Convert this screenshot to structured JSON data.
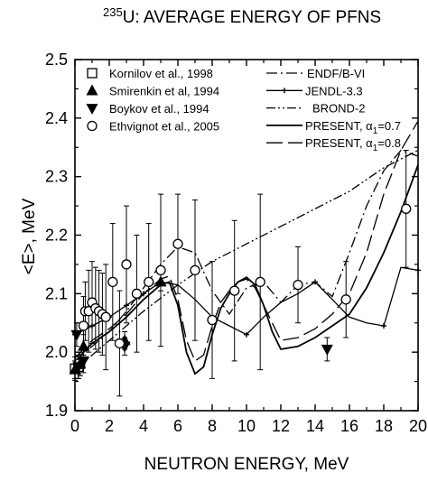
{
  "chart_data": {
    "type": "scatter",
    "title_sup": "235",
    "title_main": "U: AVERAGE ENERGY OF PFNS",
    "xlabel": "NEUTRON ENERGY, MeV",
    "ylabel": "<E>, MeV",
    "xlim": [
      0,
      20
    ],
    "ylim": [
      1.9,
      2.5
    ],
    "xticks": [
      "0",
      "2",
      "4",
      "6",
      "8",
      "10",
      "12",
      "14",
      "16",
      "18",
      "20"
    ],
    "yticks": [
      "1.9",
      "2.0",
      "2.1",
      "2.2",
      "2.3",
      "2.4",
      "2.5"
    ],
    "grid": false,
    "legend_left": [
      {
        "label": "Kornilov et al., 1998",
        "marker": "square-open"
      },
      {
        "label": "Smirenkin et al, 1994",
        "marker": "triangle-up-filled"
      },
      {
        "label": "Boykov et al., 1994",
        "marker": "triangle-down-filled"
      },
      {
        "label": "Ethvignot et al.,  2005",
        "marker": "circle-open"
      }
    ],
    "legend_right": [
      {
        "label": "ENDF/B-VI",
        "style": "dashdot"
      },
      {
        "label": "JENDL-3.3",
        "style": "solid-plus"
      },
      {
        "label": "BROND-2",
        "style": "dashdotdot"
      },
      {
        "label_main": "PRESENT, α",
        "label_sub": "1",
        "label_tail": "=0.7",
        "style": "solid"
      },
      {
        "label_main": "PRESENT, α",
        "label_sub": "1",
        "label_tail": "=0.8",
        "style": "longdash"
      }
    ],
    "series": [
      {
        "name": "Kornilov et al., 1998",
        "marker": "square-open",
        "points": [
          [
            0.0,
            1.972,
            0.02
          ],
          [
            0.2,
            1.975,
            0.02
          ],
          [
            0.3,
            1.98,
            0.02
          ]
        ]
      },
      {
        "name": "Smirenkin et al, 1994",
        "marker": "triangle-up-filled",
        "points": [
          [
            0.0,
            1.97,
            0.015
          ],
          [
            0.3,
            1.98,
            0.02
          ],
          [
            0.5,
            2.01,
            0.02
          ],
          [
            2.9,
            2.02,
            0.015
          ],
          [
            5.0,
            2.12,
            0.015
          ]
        ]
      },
      {
        "name": "Boykov et al., 1994",
        "marker": "triangle-down-filled",
        "points": [
          [
            0.1,
            2.03,
            0.02
          ],
          [
            0.2,
            1.975,
            0.02
          ],
          [
            0.5,
            1.985,
            0.02
          ],
          [
            2.9,
            2.01,
            0.015
          ],
          [
            14.7,
            2.005,
            0.02
          ]
        ]
      },
      {
        "name": "Ethvignot et al.,  2005",
        "marker": "circle-open",
        "points": [
          [
            0.5,
            2.045,
            0.05
          ],
          [
            0.6,
            2.07,
            0.05
          ],
          [
            0.8,
            2.07,
            0.07
          ],
          [
            1.0,
            2.085,
            0.07
          ],
          [
            1.2,
            2.075,
            0.07
          ],
          [
            1.4,
            2.07,
            0.07
          ],
          [
            1.6,
            2.065,
            0.07
          ],
          [
            1.8,
            2.06,
            0.09
          ],
          [
            2.2,
            2.12,
            0.1
          ],
          [
            2.6,
            2.015,
            0.09
          ],
          [
            3.0,
            2.15,
            0.1
          ],
          [
            3.6,
            2.1,
            0.1
          ],
          [
            4.3,
            2.12,
            0.1
          ],
          [
            5.0,
            2.14,
            0.13
          ],
          [
            6.0,
            2.185,
            0.085
          ],
          [
            7.0,
            2.14,
            0.12
          ],
          [
            8.0,
            2.055,
            0.1
          ],
          [
            9.3,
            2.105,
            0.12
          ],
          [
            10.8,
            2.12,
            0.15
          ],
          [
            13.0,
            2.115,
            0.065
          ],
          [
            15.8,
            2.09,
            0.065
          ],
          [
            19.3,
            2.245,
            0.1
          ]
        ]
      }
    ],
    "curves": [
      {
        "name": "ENDF/B-VI",
        "style": "dashdot",
        "x": [
          0,
          1,
          2,
          3,
          4,
          5,
          6,
          7,
          8,
          9,
          10,
          11,
          12,
          13,
          14,
          15,
          16,
          17,
          18,
          19,
          20
        ],
        "y": [
          1.985,
          2.01,
          2.035,
          2.07,
          2.11,
          2.15,
          2.18,
          2.17,
          2.105,
          2.065,
          2.11,
          2.12,
          2.085,
          2.115,
          2.12,
          2.095,
          2.17,
          2.25,
          2.31,
          2.345,
          2.335
        ]
      },
      {
        "name": "JENDL-3.3",
        "style": "solid-plus",
        "x": [
          0,
          1,
          2,
          3,
          4,
          5,
          6,
          7,
          8,
          9,
          10,
          11,
          12,
          13,
          14,
          15,
          16,
          17,
          18,
          19,
          20
        ],
        "y": [
          2.03,
          2.045,
          2.06,
          2.08,
          2.1,
          2.12,
          2.115,
          2.09,
          2.06,
          2.045,
          2.03,
          2.06,
          2.085,
          2.1,
          2.12,
          2.09,
          2.06,
          2.05,
          2.045,
          2.145,
          2.14
        ],
        "markers_x": [
          0,
          1,
          2,
          3,
          4,
          5,
          10,
          14,
          18,
          20
        ]
      },
      {
        "name": "BROND-2",
        "style": "dashdotdot",
        "x": [
          0,
          2,
          4,
          6,
          8,
          10,
          12,
          14,
          16,
          18,
          20
        ],
        "y": [
          1.97,
          2.02,
          2.07,
          2.115,
          2.155,
          2.185,
          2.215,
          2.245,
          2.275,
          2.315,
          2.345
        ]
      },
      {
        "name": "PRESENT, α1=0.7",
        "style": "solid",
        "x": [
          0,
          0.5,
          1,
          2,
          3,
          4,
          5,
          5.5,
          6,
          6.5,
          7,
          7.5,
          8,
          8.5,
          9,
          9.5,
          10,
          10.5,
          11,
          11.5,
          12,
          13,
          14,
          15,
          16,
          17,
          18,
          19,
          20
        ],
        "y": [
          1.98,
          2.0,
          2.015,
          2.035,
          2.06,
          2.09,
          2.115,
          2.12,
          2.08,
          2.0,
          1.963,
          1.975,
          2.03,
          2.075,
          2.1,
          2.12,
          2.128,
          2.115,
          2.08,
          2.035,
          2.005,
          2.01,
          2.025,
          2.045,
          2.065,
          2.11,
          2.17,
          2.24,
          2.32
        ]
      },
      {
        "name": "PRESENT, α1=0.8",
        "style": "longdash",
        "x": [
          0,
          0.5,
          1,
          2,
          3,
          4,
          5,
          5.5,
          6,
          6.5,
          7,
          7.5,
          8,
          8.5,
          9,
          9.5,
          10,
          10.5,
          11,
          11.5,
          12,
          13,
          14,
          15,
          16,
          17,
          18,
          19,
          20
        ],
        "y": [
          1.99,
          2.005,
          2.02,
          2.04,
          2.065,
          2.1,
          2.125,
          2.13,
          2.09,
          2.02,
          1.985,
          1.995,
          2.045,
          2.085,
          2.105,
          2.12,
          2.125,
          2.11,
          2.08,
          2.05,
          2.02,
          2.025,
          2.04,
          2.065,
          2.1,
          2.17,
          2.27,
          2.345,
          2.395
        ]
      }
    ]
  }
}
